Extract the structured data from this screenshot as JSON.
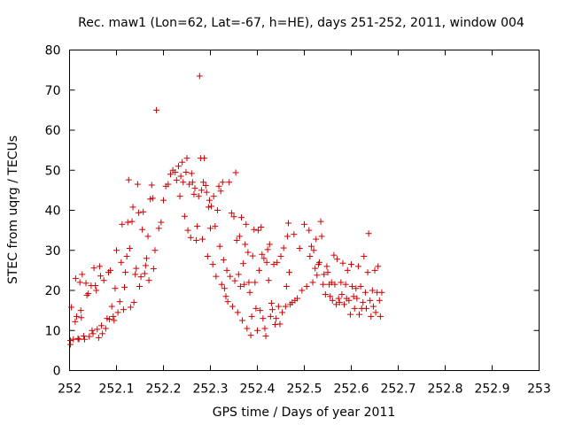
{
  "chart_data": {
    "type": "scatter",
    "title": "Rec. maw1 (Lon=62, Lat=-67, h=HE), days 251-252, 2011, window 004",
    "xlabel": "GPS time / Days of year 2011",
    "ylabel": "STEC from uqrg / TECUs",
    "xlim": [
      252,
      253
    ],
    "ylim": [
      0,
      80
    ],
    "xticks": [
      252,
      252.1,
      252.2,
      252.3,
      252.4,
      252.5,
      252.6,
      252.7,
      252.8,
      252.9,
      253
    ],
    "xtick_labels": [
      "252",
      "252.1",
      "252.2",
      "252.3",
      "252.4",
      "252.5",
      "252.6",
      "252.7",
      "252.8",
      "252.9",
      "253"
    ],
    "yticks": [
      0,
      10,
      20,
      30,
      40,
      50,
      60,
      70,
      80
    ],
    "ytick_labels": [
      "0",
      "10",
      "20",
      "30",
      "40",
      "50",
      "60",
      "70",
      "80"
    ],
    "grid": false,
    "legend": "none",
    "marker": "plus",
    "color": "#cc0000",
    "points": [
      [
        252.002,
        6.5
      ],
      [
        252.002,
        7.5
      ],
      [
        252.004,
        15.8
      ],
      [
        252.008,
        7.8
      ],
      [
        252.012,
        12.2
      ],
      [
        252.013,
        23.0
      ],
      [
        252.015,
        13.5
      ],
      [
        252.018,
        8.0
      ],
      [
        252.02,
        7.8
      ],
      [
        252.022,
        22.0
      ],
      [
        252.024,
        15.0
      ],
      [
        252.025,
        13.2
      ],
      [
        252.027,
        24.0
      ],
      [
        252.03,
        8.6
      ],
      [
        252.032,
        7.8
      ],
      [
        252.035,
        21.8
      ],
      [
        252.037,
        18.8
      ],
      [
        252.04,
        19.2
      ],
      [
        252.042,
        8.5
      ],
      [
        252.046,
        21.2
      ],
      [
        252.048,
        10.0
      ],
      [
        252.05,
        9.2
      ],
      [
        252.052,
        25.6
      ],
      [
        252.055,
        21.2
      ],
      [
        252.057,
        20.0
      ],
      [
        252.059,
        10.3
      ],
      [
        252.062,
        8.2
      ],
      [
        252.064,
        26.0
      ],
      [
        252.066,
        23.6
      ],
      [
        252.068,
        11.2
      ],
      [
        252.07,
        9.2
      ],
      [
        252.073,
        22.5
      ],
      [
        252.077,
        10.5
      ],
      [
        252.08,
        13.0
      ],
      [
        252.083,
        24.5
      ],
      [
        252.085,
        12.8
      ],
      [
        252.087,
        25.0
      ],
      [
        252.09,
        16.0
      ],
      [
        252.093,
        13.5
      ],
      [
        252.095,
        12.5
      ],
      [
        252.097,
        20.5
      ],
      [
        252.1,
        30.0
      ],
      [
        252.103,
        14.5
      ],
      [
        252.107,
        17.2
      ],
      [
        252.11,
        27.0
      ],
      [
        252.112,
        36.5
      ],
      [
        252.115,
        15.2
      ],
      [
        252.117,
        20.8
      ],
      [
        252.119,
        24.5
      ],
      [
        252.122,
        28.5
      ],
      [
        252.124,
        37.0
      ],
      [
        252.126,
        47.6
      ],
      [
        252.128,
        30.5
      ],
      [
        252.13,
        15.8
      ],
      [
        252.133,
        37.2
      ],
      [
        252.135,
        40.8
      ],
      [
        252.137,
        17.0
      ],
      [
        252.14,
        24.0
      ],
      [
        252.142,
        25.5
      ],
      [
        252.145,
        46.5
      ],
      [
        252.147,
        39.4
      ],
      [
        252.149,
        21.0
      ],
      [
        252.152,
        23.4
      ],
      [
        252.155,
        35.2
      ],
      [
        252.157,
        39.6
      ],
      [
        252.16,
        24.2
      ],
      [
        252.162,
        26.2
      ],
      [
        252.164,
        28.0
      ],
      [
        252.167,
        33.5
      ],
      [
        252.169,
        22.5
      ],
      [
        252.172,
        42.8
      ],
      [
        252.175,
        46.3
      ],
      [
        252.177,
        43.0
      ],
      [
        252.179,
        25.4
      ],
      [
        252.182,
        30.0
      ],
      [
        252.185,
        65.0
      ],
      [
        252.19,
        35.5
      ],
      [
        252.195,
        37.0
      ],
      [
        252.2,
        42.5
      ],
      [
        252.205,
        46.0
      ],
      [
        252.21,
        46.5
      ],
      [
        252.215,
        49.0
      ],
      [
        252.22,
        50.0
      ],
      [
        252.225,
        49.5
      ],
      [
        252.228,
        47.5
      ],
      [
        252.232,
        51.0
      ],
      [
        252.235,
        43.5
      ],
      [
        252.237,
        48.5
      ],
      [
        252.24,
        52.0
      ],
      [
        252.242,
        47.0
      ],
      [
        252.245,
        38.5
      ],
      [
        252.248,
        49.5
      ],
      [
        252.25,
        53.0
      ],
      [
        252.252,
        35.0
      ],
      [
        252.255,
        46.5
      ],
      [
        252.258,
        33.2
      ],
      [
        252.26,
        49.2
      ],
      [
        252.262,
        47.0
      ],
      [
        252.265,
        44.0
      ],
      [
        252.267,
        45.5
      ],
      [
        252.27,
        32.5
      ],
      [
        252.272,
        36.0
      ],
      [
        252.275,
        43.5
      ],
      [
        252.277,
        73.5
      ],
      [
        252.279,
        53.0
      ],
      [
        252.281,
        45.0
      ],
      [
        252.283,
        32.8
      ],
      [
        252.285,
        47.0
      ],
      [
        252.287,
        53.0
      ],
      [
        252.29,
        46.2
      ],
      [
        252.292,
        44.5
      ],
      [
        252.294,
        28.5
      ],
      [
        252.296,
        40.8
      ],
      [
        252.298,
        42.5
      ],
      [
        252.3,
        35.5
      ],
      [
        252.302,
        41.0
      ],
      [
        252.305,
        26.5
      ],
      [
        252.307,
        43.5
      ],
      [
        252.31,
        36.0
      ],
      [
        252.312,
        23.5
      ],
      [
        252.315,
        40.0
      ],
      [
        252.318,
        46.0
      ],
      [
        252.32,
        31.0
      ],
      [
        252.322,
        44.8
      ],
      [
        252.324,
        21.5
      ],
      [
        252.326,
        47.0
      ],
      [
        252.328,
        27.6
      ],
      [
        252.33,
        20.5
      ],
      [
        252.333,
        18.5
      ],
      [
        252.335,
        25.0
      ],
      [
        252.337,
        17.2
      ],
      [
        252.34,
        47.0
      ],
      [
        252.342,
        23.5
      ],
      [
        252.345,
        39.3
      ],
      [
        252.347,
        16.0
      ],
      [
        252.35,
        38.4
      ],
      [
        252.352,
        22.4
      ],
      [
        252.354,
        49.4
      ],
      [
        252.356,
        32.5
      ],
      [
        252.358,
        14.5
      ],
      [
        252.36,
        24.0
      ],
      [
        252.362,
        33.5
      ],
      [
        252.364,
        21.0
      ],
      [
        252.366,
        38.2
      ],
      [
        252.368,
        12.5
      ],
      [
        252.37,
        26.7
      ],
      [
        252.372,
        21.5
      ],
      [
        252.374,
        31.5
      ],
      [
        252.376,
        36.5
      ],
      [
        252.378,
        10.5
      ],
      [
        252.38,
        29.5
      ],
      [
        252.382,
        22.0
      ],
      [
        252.384,
        19.5
      ],
      [
        252.386,
        8.8
      ],
      [
        252.388,
        13.5
      ],
      [
        252.39,
        28.6
      ],
      [
        252.393,
        35.2
      ],
      [
        252.395,
        22.0
      ],
      [
        252.397,
        15.5
      ],
      [
        252.4,
        10.0
      ],
      [
        252.402,
        35.0
      ],
      [
        252.404,
        25.0
      ],
      [
        252.406,
        15.0
      ],
      [
        252.408,
        35.8
      ],
      [
        252.41,
        29.0
      ],
      [
        252.412,
        13.0
      ],
      [
        252.414,
        28.0
      ],
      [
        252.416,
        10.5
      ],
      [
        252.418,
        8.6
      ],
      [
        252.42,
        27.0
      ],
      [
        252.422,
        30.2
      ],
      [
        252.424,
        22.5
      ],
      [
        252.426,
        31.5
      ],
      [
        252.428,
        13.5
      ],
      [
        252.43,
        16.8
      ],
      [
        252.432,
        15.2
      ],
      [
        252.435,
        26.5
      ],
      [
        252.438,
        11.5
      ],
      [
        252.44,
        13.0
      ],
      [
        252.442,
        27.0
      ],
      [
        252.445,
        16.0
      ],
      [
        252.448,
        11.6
      ],
      [
        252.45,
        28.5
      ],
      [
        252.453,
        14.5
      ],
      [
        252.456,
        30.6
      ],
      [
        252.46,
        16.0
      ],
      [
        252.462,
        21.0
      ],
      [
        252.464,
        33.5
      ],
      [
        252.466,
        36.8
      ],
      [
        252.468,
        24.5
      ],
      [
        252.47,
        16.5
      ],
      [
        252.474,
        17.0
      ],
      [
        252.478,
        34.0
      ],
      [
        252.48,
        17.5
      ],
      [
        252.485,
        18.0
      ],
      [
        252.49,
        30.5
      ],
      [
        252.495,
        20.0
      ],
      [
        252.5,
        36.5
      ],
      [
        252.505,
        21.0
      ],
      [
        252.51,
        35.0
      ],
      [
        252.512,
        28.5
      ],
      [
        252.515,
        31.0
      ],
      [
        252.518,
        22.0
      ],
      [
        252.52,
        30.0
      ],
      [
        252.523,
        25.5
      ],
      [
        252.525,
        32.8
      ],
      [
        252.527,
        23.8
      ],
      [
        252.53,
        26.5
      ],
      [
        252.532,
        27.0
      ],
      [
        252.535,
        37.2
      ],
      [
        252.537,
        33.5
      ],
      [
        252.54,
        21.5
      ],
      [
        252.542,
        24.0
      ],
      [
        252.545,
        19.0
      ],
      [
        252.548,
        26.0
      ],
      [
        252.55,
        24.5
      ],
      [
        252.553,
        21.5
      ],
      [
        252.555,
        18.5
      ],
      [
        252.558,
        22.0
      ],
      [
        252.56,
        17.5
      ],
      [
        252.563,
        28.8
      ],
      [
        252.565,
        21.5
      ],
      [
        252.568,
        16.5
      ],
      [
        252.57,
        27.8
      ],
      [
        252.573,
        18.0
      ],
      [
        252.575,
        17.0
      ],
      [
        252.578,
        22.0
      ],
      [
        252.58,
        19.0
      ],
      [
        252.582,
        26.8
      ],
      [
        252.585,
        16.5
      ],
      [
        252.588,
        21.5
      ],
      [
        252.59,
        18.0
      ],
      [
        252.592,
        25.0
      ],
      [
        252.595,
        17.5
      ],
      [
        252.598,
        14.0
      ],
      [
        252.6,
        26.5
      ],
      [
        252.602,
        21.0
      ],
      [
        252.605,
        18.5
      ],
      [
        252.607,
        15.5
      ],
      [
        252.61,
        20.5
      ],
      [
        252.612,
        18.0
      ],
      [
        252.615,
        26.0
      ],
      [
        252.617,
        14.0
      ],
      [
        252.62,
        21.0
      ],
      [
        252.622,
        15.5
      ],
      [
        252.625,
        17.0
      ],
      [
        252.627,
        28.5
      ],
      [
        252.63,
        19.5
      ],
      [
        252.632,
        15.5
      ],
      [
        252.635,
        24.5
      ],
      [
        252.637,
        34.2
      ],
      [
        252.64,
        17.5
      ],
      [
        252.642,
        13.5
      ],
      [
        252.645,
        20.0
      ],
      [
        252.647,
        16.0
      ],
      [
        252.65,
        25.0
      ],
      [
        252.652,
        14.5
      ],
      [
        252.655,
        19.5
      ],
      [
        252.657,
        26.0
      ],
      [
        252.66,
        17.5
      ],
      [
        252.662,
        13.5
      ],
      [
        252.665,
        19.5
      ]
    ]
  }
}
